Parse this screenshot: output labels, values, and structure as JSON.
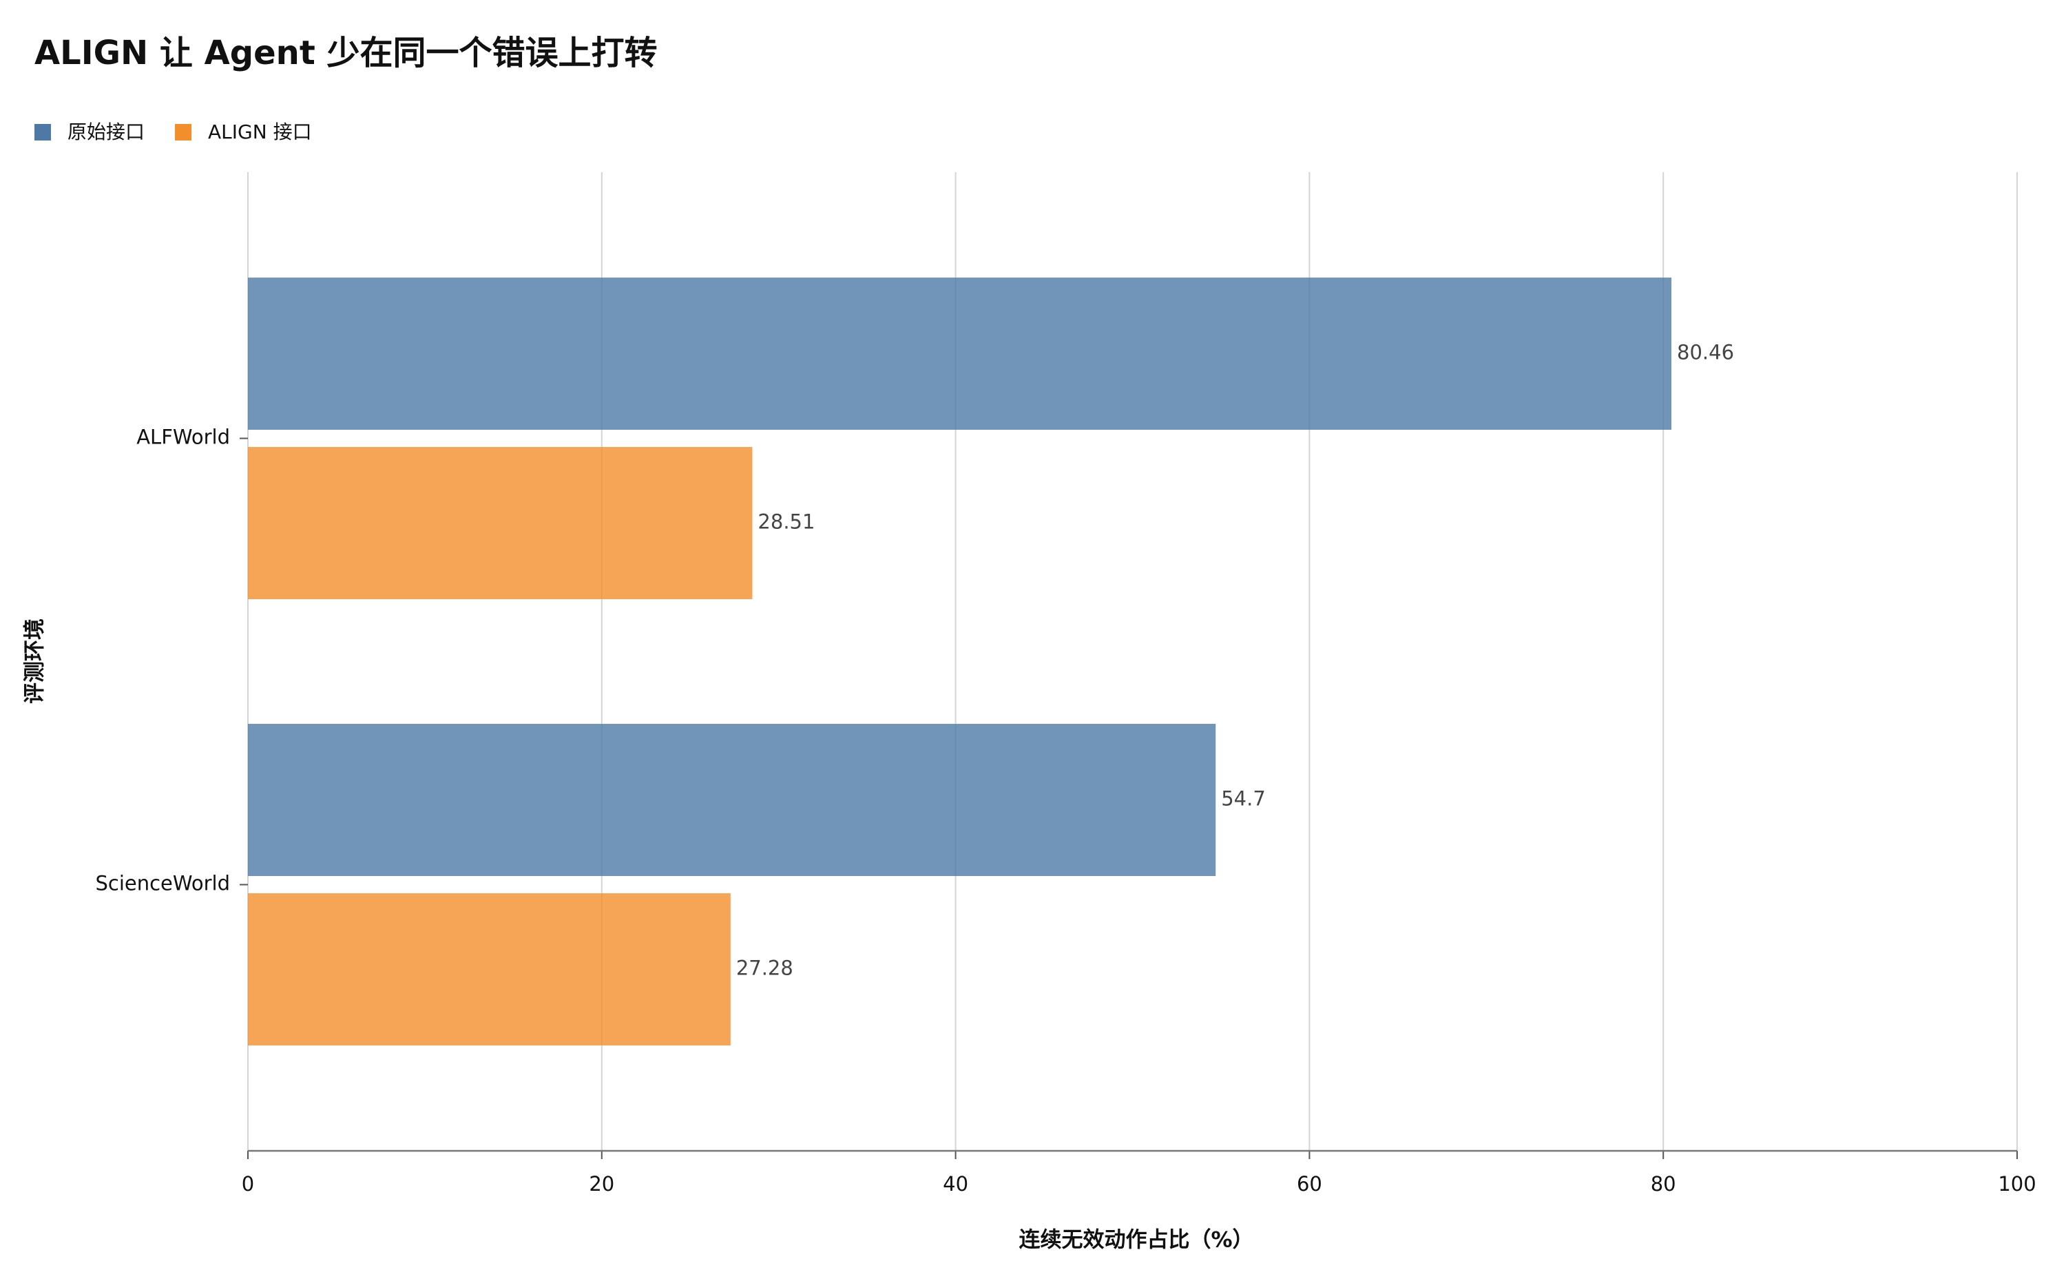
{
  "chart_data": {
    "type": "bar",
    "orientation": "horizontal",
    "title": "ALIGN 让 Agent 少在同一个错误上打转",
    "x_label": "连续无效动作占比（%）",
    "y_label": "评测环境",
    "categories": [
      "ALFWorld",
      "ScienceWorld"
    ],
    "series": [
      {
        "name": "原始接口",
        "color": "#4e79a7",
        "values": [
          80.46,
          54.7
        ]
      },
      {
        "name": "ALIGN 接口",
        "color": "#f28e2b",
        "values": [
          28.51,
          27.28
        ]
      }
    ],
    "xlim": [
      0,
      100
    ],
    "xticks": [
      0,
      20,
      40,
      60,
      80,
      100
    ],
    "grid": true,
    "legend": "top-left"
  }
}
